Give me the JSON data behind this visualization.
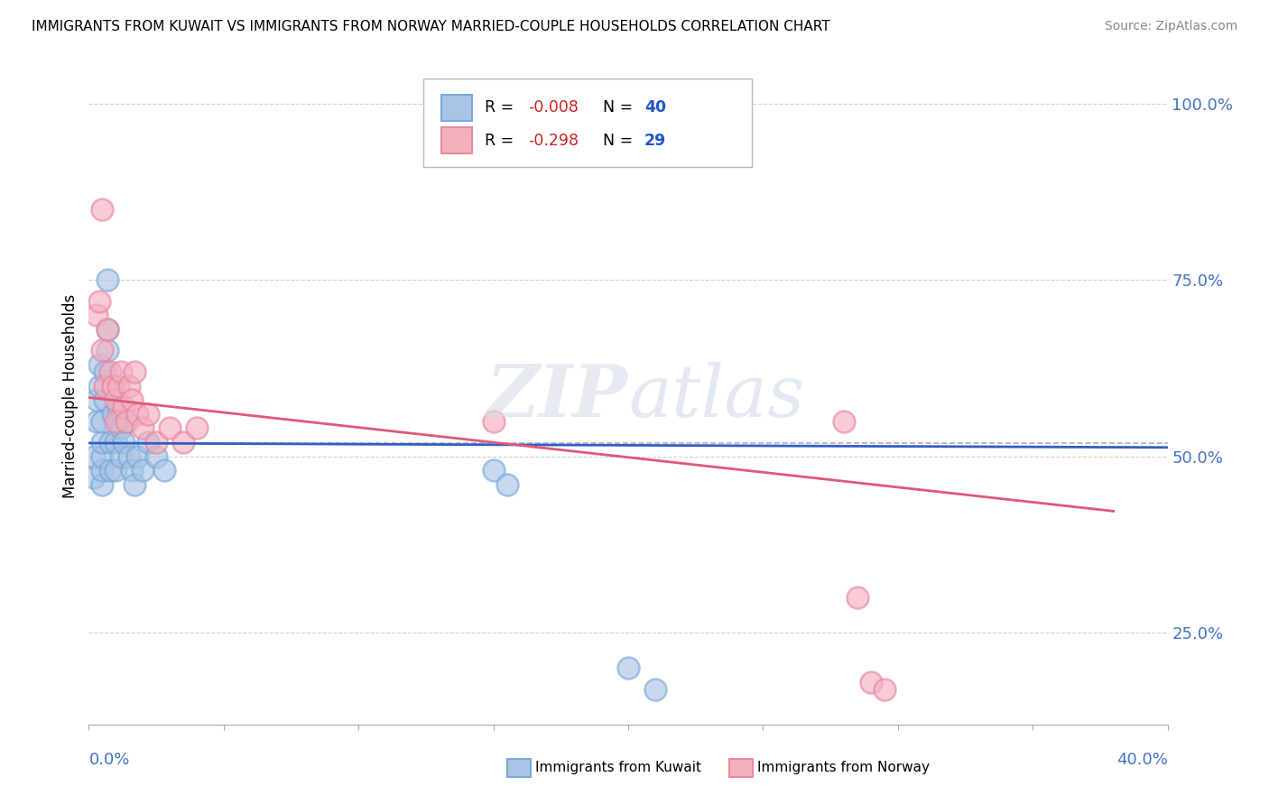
{
  "title": "IMMIGRANTS FROM KUWAIT VS IMMIGRANTS FROM NORWAY MARRIED-COUPLE HOUSEHOLDS CORRELATION CHART",
  "source": "Source: ZipAtlas.com",
  "ylabel": "Married-couple Households",
  "xlim": [
    0.0,
    0.4
  ],
  "ylim": [
    0.12,
    1.05
  ],
  "kuwait_color": "#aac4e8",
  "norway_color": "#f5b0c0",
  "kuwait_edge": "#7aaad4",
  "norway_edge": "#e888a0",
  "kuwait_line_color": "#3060c0",
  "norway_line_color": "#e05878",
  "dashed_line_color": "#8888bb",
  "grid_color": "#cccccc",
  "axis_label_color": "#4472c4",
  "ytick_vals": [
    0.25,
    0.5,
    0.75,
    1.0
  ],
  "ytick_labels": [
    "25.0%",
    "50.0%",
    "75.0%",
    "100.0%"
  ],
  "watermark": "ZIPatlas",
  "kuwait_x": [
    0.002,
    0.002,
    0.003,
    0.003,
    0.004,
    0.004,
    0.005,
    0.005,
    0.005,
    0.005,
    0.005,
    0.006,
    0.006,
    0.007,
    0.007,
    0.007,
    0.008,
    0.008,
    0.009,
    0.009,
    0.01,
    0.01,
    0.011,
    0.011,
    0.012,
    0.012,
    0.013,
    0.014,
    0.015,
    0.016,
    0.017,
    0.018,
    0.02,
    0.022,
    0.025,
    0.028,
    0.15,
    0.155,
    0.2,
    0.21
  ],
  "kuwait_y": [
    0.47,
    0.5,
    0.55,
    0.58,
    0.6,
    0.63,
    0.46,
    0.48,
    0.5,
    0.52,
    0.55,
    0.58,
    0.62,
    0.65,
    0.68,
    0.75,
    0.48,
    0.52,
    0.56,
    0.6,
    0.48,
    0.52,
    0.55,
    0.57,
    0.5,
    0.54,
    0.52,
    0.55,
    0.5,
    0.48,
    0.46,
    0.5,
    0.48,
    0.52,
    0.5,
    0.48,
    0.48,
    0.46,
    0.2,
    0.17
  ],
  "norway_x": [
    0.003,
    0.004,
    0.005,
    0.005,
    0.006,
    0.007,
    0.008,
    0.009,
    0.01,
    0.01,
    0.011,
    0.012,
    0.013,
    0.014,
    0.015,
    0.016,
    0.017,
    0.018,
    0.02,
    0.022,
    0.025,
    0.03,
    0.035,
    0.04,
    0.15,
    0.28,
    0.285,
    0.29,
    0.295
  ],
  "norway_y": [
    0.7,
    0.72,
    0.65,
    0.85,
    0.6,
    0.68,
    0.62,
    0.6,
    0.58,
    0.55,
    0.6,
    0.62,
    0.57,
    0.55,
    0.6,
    0.58,
    0.62,
    0.56,
    0.54,
    0.56,
    0.52,
    0.54,
    0.52,
    0.54,
    0.55,
    0.55,
    0.3,
    0.18,
    0.17
  ]
}
